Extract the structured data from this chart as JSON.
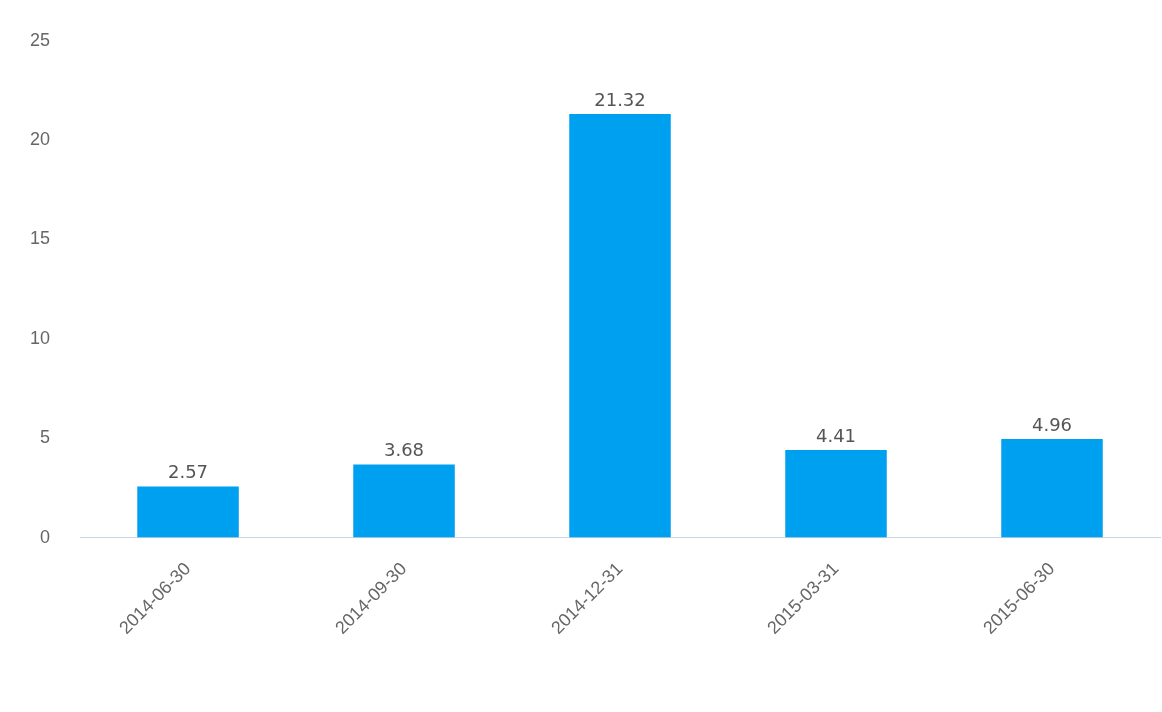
{
  "chart_data": {
    "type": "bar",
    "categories": [
      "2014-06-30",
      "2014-09-30",
      "2014-12-31",
      "2015-03-31",
      "2015-06-30"
    ],
    "series": [
      {
        "color": "#00a0f0",
        "values": [
          2.57,
          3.68,
          21.32,
          4.41,
          4.96
        ]
      }
    ],
    "ylim": [
      0,
      25
    ],
    "yticks": [
      0,
      5,
      10,
      15,
      20,
      25
    ],
    "grid": false,
    "data_labels": true
  }
}
